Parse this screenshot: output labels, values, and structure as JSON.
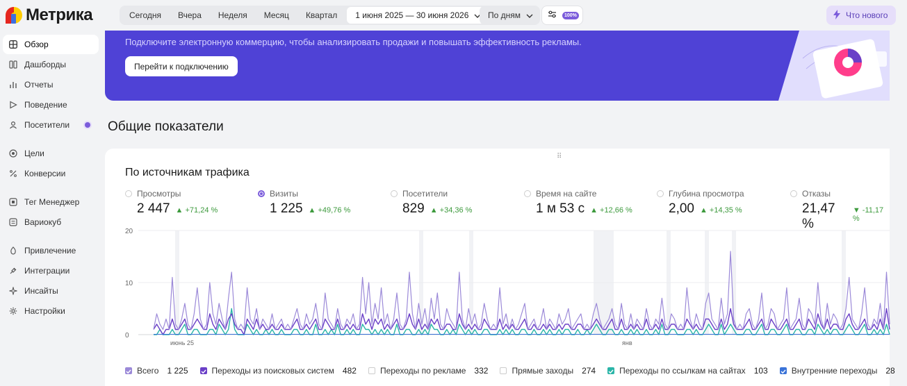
{
  "app": {
    "logo_text": "Метрика"
  },
  "sidebar": {
    "items": [
      {
        "label": "Обзор",
        "icon": "grid-icon",
        "active": true
      },
      {
        "label": "Дашборды",
        "icon": "dashboard-icon"
      },
      {
        "label": "Отчеты",
        "icon": "bar-chart-icon"
      },
      {
        "label": "Поведение",
        "icon": "play-icon"
      },
      {
        "label": "Посетители",
        "icon": "user-icon",
        "dot": true
      },
      {
        "label": "Цели",
        "icon": "target-icon"
      },
      {
        "label": "Конверсии",
        "icon": "percent-icon"
      },
      {
        "label": "Тег Менеджер",
        "icon": "tag-icon"
      },
      {
        "label": "Вариокуб",
        "icon": "list-icon"
      },
      {
        "label": "Привлечение",
        "icon": "flame-icon"
      },
      {
        "label": "Интеграции",
        "icon": "plug-icon"
      },
      {
        "label": "Инсайты",
        "icon": "sparkle-icon"
      },
      {
        "label": "Настройки",
        "icon": "gear-icon"
      }
    ]
  },
  "topbar": {
    "periods": [
      "Сегодня",
      "Вчера",
      "Неделя",
      "Месяц",
      "Квартал"
    ],
    "date_range": "1 июня 2025 — 30 июня 2026",
    "grouping": "По дням",
    "filter_badge": "100%",
    "whats_new": "Что нового"
  },
  "banner": {
    "text": "Подключите электронную коммерцию, чтобы анализировать продажи и повышать эффективность рекламы.",
    "button": "Перейти к подключению"
  },
  "section": {
    "title": "Общие показатели"
  },
  "card": {
    "title": "По источникам трафика",
    "metrics": [
      {
        "label": "Просмотры",
        "value": "2 447",
        "delta": "▲ +71,24 %",
        "selected": false
      },
      {
        "label": "Визиты",
        "value": "1 225",
        "delta": "▲ +49,76 %",
        "selected": true
      },
      {
        "label": "Посетители",
        "value": "829",
        "delta": "▲ +34,36 %",
        "selected": false
      },
      {
        "label": "Время на сайте",
        "value": "1 м 53 с",
        "delta": "▲ +12,66 %",
        "selected": false
      },
      {
        "label": "Глубина просмотра",
        "value": "2,00",
        "delta": "▲ +14,35 %",
        "selected": false
      },
      {
        "label": "Отказы",
        "value": "21,47 %",
        "delta": "▼ -11,17 %",
        "selected": false
      }
    ]
  },
  "chart_data": {
    "type": "line",
    "y_ticks": [
      "20",
      "10",
      "0"
    ],
    "ylim": [
      0,
      20
    ],
    "x_labels": [
      "июнь 25",
      "янв"
    ],
    "colors": {
      "total": "#9b89d8",
      "search": "#6a3fc7",
      "links": "#2bb5a8",
      "internal": "#3a73d8"
    },
    "series": [
      {
        "key": "total",
        "values": [
          1,
          4,
          2,
          1,
          3,
          1,
          11,
          2,
          1,
          3,
          6,
          2,
          1,
          4,
          9,
          3,
          1,
          2,
          10,
          4,
          2,
          6,
          3,
          1,
          7,
          12,
          3,
          1,
          2,
          1,
          9,
          3,
          2,
          5,
          1,
          3,
          2,
          1,
          4,
          1,
          2,
          3,
          1,
          2,
          1,
          3,
          5,
          2,
          1,
          4,
          2,
          3,
          6,
          2,
          1,
          8,
          3,
          2,
          1,
          5,
          2,
          1,
          3,
          2,
          4,
          1,
          2,
          11,
          4,
          10,
          2,
          6,
          3,
          9,
          2,
          4,
          1,
          3,
          8,
          2,
          1,
          3,
          12,
          4,
          1,
          6,
          2,
          5,
          1,
          7,
          3,
          8,
          2,
          1,
          5,
          3,
          2,
          1,
          12,
          3,
          1,
          5,
          2,
          4,
          1,
          2,
          6,
          3,
          1,
          2,
          1,
          9,
          2,
          4,
          1,
          3,
          1,
          2,
          4,
          6,
          1,
          2,
          3,
          1,
          2,
          5,
          1,
          3,
          2,
          1,
          4,
          2,
          3,
          5,
          1,
          2,
          3,
          4,
          1,
          2,
          1,
          4,
          6,
          3,
          1,
          2,
          3,
          5,
          2,
          1,
          6,
          2,
          1,
          4,
          1,
          3,
          2,
          1,
          5,
          2,
          1,
          3,
          2,
          7,
          2,
          1,
          4,
          3,
          1,
          2,
          1,
          9,
          3,
          1,
          4,
          2,
          1,
          6,
          8,
          3,
          2,
          1,
          7,
          2,
          4,
          16,
          3,
          1,
          2,
          1,
          4,
          5,
          2,
          1,
          3,
          8,
          1,
          2,
          5,
          4,
          1,
          2,
          3,
          9,
          1,
          2,
          3,
          7,
          2,
          1,
          5,
          4,
          2,
          10,
          3,
          1,
          6,
          2,
          4,
          3,
          1,
          2,
          5,
          11,
          3,
          2,
          1,
          4,
          9,
          2,
          1,
          3,
          2,
          6,
          1,
          12,
          2
        ]
      },
      {
        "key": "search",
        "values": [
          1,
          2,
          1,
          0,
          1,
          1,
          3,
          1,
          1,
          2,
          3,
          1,
          1,
          2,
          3,
          2,
          1,
          1,
          4,
          2,
          1,
          3,
          2,
          1,
          3,
          4,
          2,
          1,
          1,
          0,
          3,
          2,
          1,
          3,
          1,
          2,
          1,
          1,
          2,
          1,
          1,
          2,
          1,
          1,
          1,
          2,
          3,
          1,
          1,
          2,
          1,
          2,
          3,
          1,
          1,
          3,
          2,
          1,
          1,
          3,
          1,
          1,
          2,
          1,
          2,
          1,
          1,
          4,
          2,
          3,
          1,
          3,
          2,
          3,
          1,
          2,
          1,
          2,
          3,
          1,
          1,
          2,
          4,
          2,
          1,
          3,
          1,
          2,
          1,
          3,
          2,
          3,
          1,
          1,
          2,
          2,
          1,
          1,
          4,
          2,
          1,
          2,
          1,
          2,
          1,
          1,
          3,
          2,
          1,
          1,
          1,
          3,
          1,
          2,
          1,
          2,
          1,
          1,
          2,
          3,
          1,
          1,
          2,
          1,
          1,
          2,
          1,
          2,
          1,
          1,
          2,
          1,
          2,
          2,
          1,
          1,
          2,
          2,
          1,
          1,
          1,
          2,
          3,
          2,
          1,
          1,
          2,
          3,
          1,
          1,
          3,
          1,
          1,
          2,
          1,
          2,
          1,
          1,
          3,
          1,
          1,
          2,
          1,
          3,
          1,
          1,
          2,
          2,
          1,
          1,
          1,
          3,
          2,
          1,
          2,
          1,
          1,
          3,
          3,
          2,
          1,
          1,
          3,
          1,
          2,
          5,
          2,
          1,
          1,
          1,
          2,
          3,
          1,
          1,
          2,
          3,
          1,
          1,
          3,
          2,
          1,
          1,
          2,
          3,
          1,
          1,
          2,
          3,
          1,
          1,
          3,
          2,
          1,
          4,
          2,
          1,
          3,
          1,
          2,
          2,
          1,
          1,
          3,
          4,
          2,
          1,
          1,
          2,
          3,
          1,
          1,
          2,
          1,
          3,
          1,
          5,
          1
        ]
      },
      {
        "key": "links",
        "values": [
          0,
          0,
          1,
          0,
          0,
          0,
          1,
          0,
          0,
          1,
          2,
          0,
          0,
          1,
          1,
          0,
          0,
          0,
          1,
          1,
          0,
          2,
          1,
          0,
          1,
          5,
          1,
          0,
          0,
          0,
          2,
          1,
          0,
          1,
          0,
          0,
          1,
          0,
          1,
          0,
          0,
          1,
          0,
          0,
          0,
          1,
          1,
          0,
          0,
          1,
          0,
          0,
          2,
          0,
          0,
          1,
          0,
          1,
          0,
          2,
          0,
          0,
          1,
          0,
          1,
          0,
          0,
          2,
          1,
          1,
          0,
          1,
          0,
          1,
          0,
          1,
          0,
          0,
          2,
          0,
          0,
          1,
          1,
          0,
          0,
          1,
          0,
          1,
          0,
          2,
          1,
          1,
          0,
          0,
          1,
          0,
          1,
          0,
          2,
          1,
          0,
          1,
          0,
          1,
          0,
          0,
          1,
          1,
          0,
          0,
          0,
          1,
          0,
          1,
          0,
          1,
          0,
          0,
          1,
          1,
          0,
          0,
          1,
          0,
          0,
          1,
          0,
          1,
          0,
          0,
          1,
          0,
          1,
          1,
          0,
          0,
          1,
          0,
          0,
          1,
          0,
          1,
          2,
          1,
          0,
          0,
          1,
          1,
          0,
          0,
          1,
          0,
          0,
          1,
          0,
          1,
          0,
          0,
          1,
          0,
          0,
          1,
          0,
          2,
          0,
          0,
          1,
          1,
          0,
          0,
          0,
          1,
          1,
          0,
          1,
          0,
          0,
          1,
          2,
          1,
          0,
          0,
          2,
          0,
          1,
          2,
          1,
          0,
          0,
          0,
          1,
          1,
          0,
          0,
          1,
          2,
          0,
          0,
          1,
          1,
          0,
          0,
          1,
          2,
          0,
          0,
          1,
          1,
          0,
          0,
          1,
          1,
          0,
          2,
          1,
          0,
          1,
          0,
          1,
          1,
          0,
          0,
          1,
          2,
          1,
          0,
          0,
          1,
          2,
          0,
          0,
          1,
          0,
          1,
          0,
          2,
          0
        ]
      }
    ]
  },
  "legend": {
    "items": [
      {
        "label": "Всего",
        "value": "1 225",
        "color": "#9b89d8",
        "checked": true
      },
      {
        "label": "Переходы из поисковых систем",
        "value": "482",
        "color": "#6a3fc7",
        "checked": true
      },
      {
        "label": "Переходы по рекламе",
        "value": "332",
        "color": "",
        "checked": false
      },
      {
        "label": "Прямые заходы",
        "value": "274",
        "color": "",
        "checked": false
      },
      {
        "label": "Переходы по ссылкам на сайтах",
        "value": "103",
        "color": "#2bb5a8",
        "checked": true
      },
      {
        "label": "Внутренние переходы",
        "value": "28",
        "color": "#3a73d8",
        "checked": true
      }
    ]
  }
}
